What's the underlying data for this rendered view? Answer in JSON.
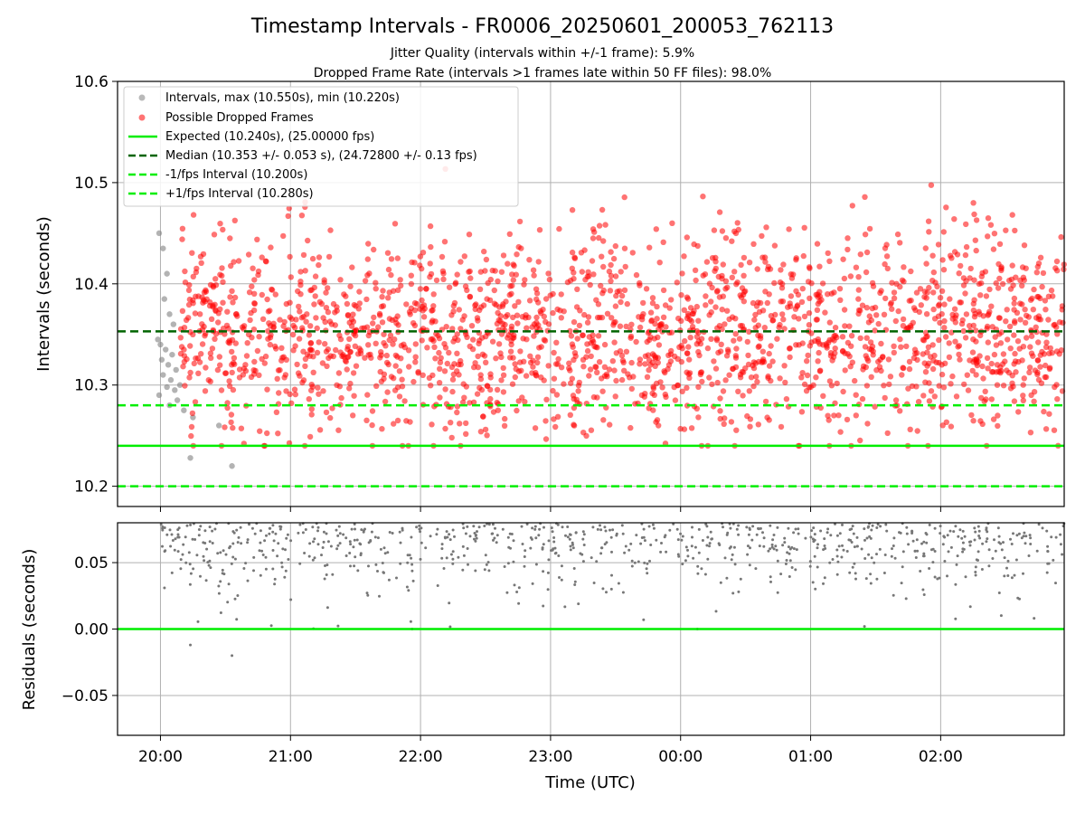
{
  "chart_data": [
    {
      "type": "scatter",
      "title": "Timestamp Intervals - FR0006_20250601_200053_762113",
      "subtitle_lines": [
        "Jitter Quality (intervals within +/-1 frame): 5.9%",
        "Dropped Frame Rate (intervals >1 frames late within 50 FF files): 98.0%"
      ],
      "xlabel": "",
      "ylabel": "Intervals (seconds)",
      "ylim": [
        10.18,
        10.6
      ],
      "yticks": [
        "10.2",
        "10.3",
        "10.4",
        "10.5",
        "10.6"
      ],
      "ytick_values": [
        10.2,
        10.3,
        10.4,
        10.5,
        10.6
      ],
      "xlim_hours": [
        -0.33,
        6.95
      ],
      "grid": true,
      "legend_position": "top-left",
      "colors": {
        "intervals": "#808080",
        "dropped": "#ff0000",
        "expected": "#00ee00",
        "median": "#006400",
        "bounds": "#00ee00"
      },
      "legend": [
        "Intervals, max (10.550s), min (10.220s)",
        "Possible Dropped Frames",
        "Expected (10.240s), (25.00000 fps)",
        "Median (10.353 +/- 0.053 s), (24.72800 +/- 0.13 fps)",
        "-1/fps Interval (10.200s)",
        "+1/fps Interval (10.280s)"
      ],
      "reference_lines": {
        "expected": 10.24,
        "median": 10.353,
        "minus_1fps": 10.2,
        "plus_1fps": 10.28
      },
      "point_summary": {
        "max": 10.55,
        "min": 10.22,
        "median": 10.353,
        "spread": 0.053
      },
      "gray_points": [
        {
          "x": -0.01,
          "y": 10.45
        },
        {
          "x": 0.02,
          "y": 10.435
        },
        {
          "x": 0.05,
          "y": 10.41
        },
        {
          "x": 0.03,
          "y": 10.385
        },
        {
          "x": 0.07,
          "y": 10.37
        },
        {
          "x": 0.1,
          "y": 10.36
        },
        {
          "x": -0.02,
          "y": 10.345
        },
        {
          "x": 0.0,
          "y": 10.34
        },
        {
          "x": 0.04,
          "y": 10.335
        },
        {
          "x": 0.09,
          "y": 10.33
        },
        {
          "x": 0.01,
          "y": 10.325
        },
        {
          "x": 0.06,
          "y": 10.32
        },
        {
          "x": 0.12,
          "y": 10.315
        },
        {
          "x": 0.02,
          "y": 10.31
        },
        {
          "x": 0.08,
          "y": 10.305
        },
        {
          "x": 0.15,
          "y": 10.3
        },
        {
          "x": 0.05,
          "y": 10.298
        },
        {
          "x": 0.11,
          "y": 10.295
        },
        {
          "x": -0.01,
          "y": 10.29
        },
        {
          "x": 0.13,
          "y": 10.285
        },
        {
          "x": 0.07,
          "y": 10.28
        },
        {
          "x": 0.18,
          "y": 10.275
        },
        {
          "x": 0.25,
          "y": 10.268
        },
        {
          "x": 0.45,
          "y": 10.26
        },
        {
          "x": 0.23,
          "y": 10.228
        },
        {
          "x": 0.55,
          "y": 10.22
        }
      ],
      "dropped_points_generated": {
        "count": 2050,
        "x_range": [
          0.15,
          6.95
        ],
        "y_range": [
          10.24,
          10.55
        ]
      }
    },
    {
      "type": "scatter",
      "xlabel": "Time (UTC)",
      "ylabel": "Residuals (seconds)",
      "ylim": [
        -0.08,
        0.08
      ],
      "yticks": [
        "−0.05",
        "0.00",
        "0.05"
      ],
      "ytick_values": [
        -0.05,
        0.0,
        0.05
      ],
      "xticks": [
        "20:00",
        "21:00",
        "22:00",
        "23:00",
        "00:00",
        "01:00",
        "02:00"
      ],
      "xtick_hours": [
        0,
        1,
        2,
        3,
        4,
        5,
        6
      ],
      "zero_line": 0.0,
      "grid": true,
      "fixed_points": [
        {
          "x": 0.23,
          "y": -0.012
        },
        {
          "x": 0.55,
          "y": -0.02
        }
      ],
      "residual_points_generated": {
        "count": 820,
        "x_range": [
          0.0,
          6.95
        ],
        "y_range": [
          0.0,
          0.08
        ]
      }
    }
  ]
}
